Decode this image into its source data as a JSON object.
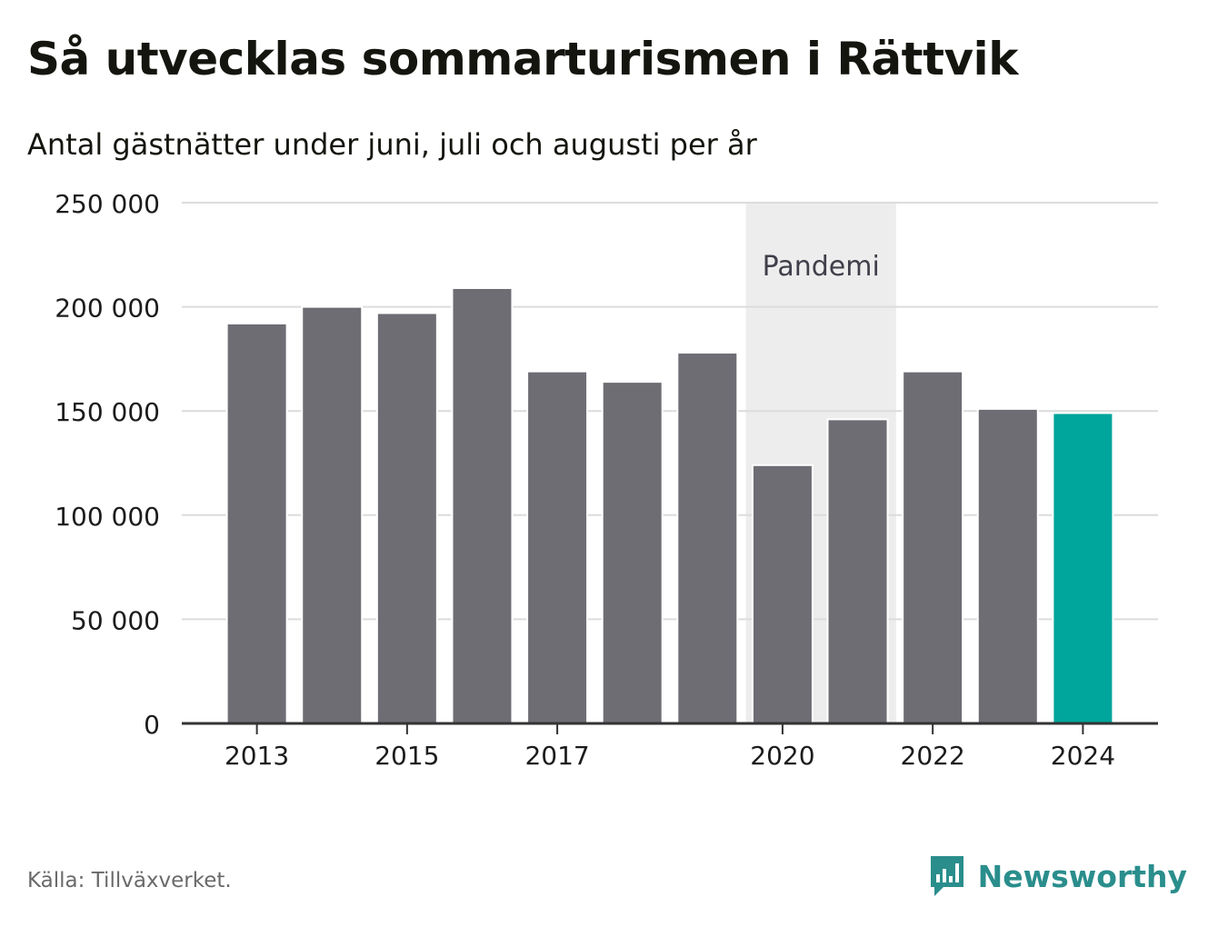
{
  "colors": {
    "bar": "#6e6d74",
    "highlight": "#00a59b",
    "band": "#ededed",
    "grid": "#dcdcdc",
    "axis": "#333333",
    "brand": "#2a8e8c"
  },
  "chart_data": {
    "type": "bar",
    "title": "Så utvecklas sommarturismen i Rättvik",
    "subtitle": "Antal gästnätter under juni, juli och augusti per år",
    "categories": [
      "2013",
      "2014",
      "2015",
      "2016",
      "2017",
      "2018",
      "2019",
      "2020",
      "2021",
      "2022",
      "2023",
      "2024"
    ],
    "values": [
      192000,
      200000,
      197000,
      209000,
      169000,
      164000,
      178000,
      124000,
      146000,
      169000,
      151000,
      149000
    ],
    "x_tick_labels": [
      "2013",
      "2015",
      "2017",
      "2020",
      "2022",
      "2024"
    ],
    "y_ticks": [
      0,
      50000,
      100000,
      150000,
      200000,
      250000
    ],
    "y_tick_labels": [
      "0",
      "50 000",
      "100 000",
      "150 000",
      "200 000",
      "250 000"
    ],
    "ylim": [
      0,
      250000
    ],
    "highlight_category": "2024",
    "annotation": {
      "label": "Pandemi",
      "from": "2020",
      "to": "2021"
    },
    "grid": true,
    "xlabel": "",
    "ylabel": ""
  },
  "footer": {
    "source": "Källa: Tillväxverket.",
    "brand": "Newsworthy",
    "brand_icon": "newsworthy-logo-icon"
  }
}
